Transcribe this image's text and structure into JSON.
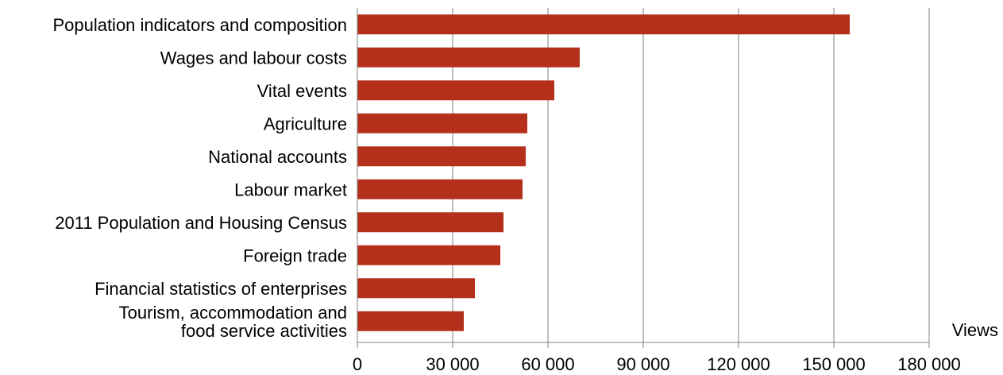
{
  "chart_data": {
    "type": "bar",
    "orientation": "horizontal",
    "categories": [
      [
        "Population indicators and composition"
      ],
      [
        "Wages and labour costs"
      ],
      [
        "Vital events"
      ],
      [
        "Agriculture"
      ],
      [
        "National accounts"
      ],
      [
        "Labour market"
      ],
      [
        "2011 Population and Housing Census"
      ],
      [
        "Foreign trade"
      ],
      [
        "Financial statistics of enterprises"
      ],
      [
        "Tourism, accommodation and",
        "food service activities"
      ]
    ],
    "values": [
      155000,
      70000,
      62000,
      53500,
      53000,
      52000,
      46000,
      45000,
      37000,
      33500
    ],
    "xlim": [
      0,
      180000
    ],
    "xticks": [
      0,
      30000,
      60000,
      90000,
      120000,
      150000,
      180000
    ],
    "xtick_labels": [
      "0",
      "30 000",
      "60 000",
      "90 000",
      "120 000",
      "150 000",
      "180 000"
    ],
    "xlabel": "Views",
    "grid": "vertical",
    "bar_color": "#B5301A",
    "grid_color": "#808080",
    "axis_color": "#808080"
  }
}
